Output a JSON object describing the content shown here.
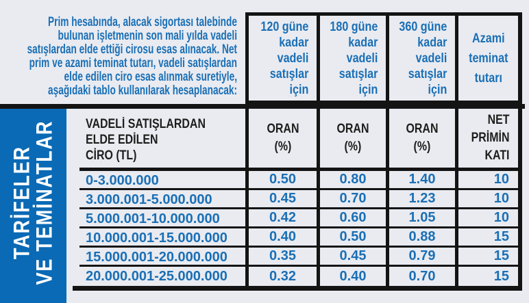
{
  "colors": {
    "background": "#e9ebf1",
    "blue_text": "#1a6fb5",
    "sidebar_blue": "#0a6ab5",
    "border_black": "#141414",
    "dark_text": "#1d1d1b",
    "white": "#ffffff"
  },
  "intro": {
    "lines": [
      "Prim hesabında, alacak sigortası talebinde",
      "bulunan işletmenin son mali yılda vadeli",
      "satışlardan elde ettiği cirosu esas alınacak. Net",
      "prim ve azami teminat tutarı, vadeli satışlardan",
      "elde edilen ciro esas alınmak suretiyle,",
      "aşağıdaki tablo kullanılarak hesaplanacak:"
    ]
  },
  "sidebar": {
    "label_lines": [
      "TARİFELER",
      "VE TEMİNATLAR"
    ]
  },
  "top_headers": [
    {
      "lines": [
        "120 güne",
        "kadar",
        "vadeli",
        "satışlar",
        "için"
      ]
    },
    {
      "lines": [
        "180 güne",
        "kadar",
        "vadeli",
        "satışlar",
        "için"
      ]
    },
    {
      "lines": [
        "360 güne",
        "kadar",
        "vadeli",
        "satışlar",
        "için"
      ]
    },
    {
      "lines": [
        "Azami",
        "teminat",
        "tutarı"
      ]
    }
  ],
  "table": {
    "column_headers": [
      {
        "lines": [
          "VADELİ SATIŞLARDAN",
          "ELDE EDİLEN",
          "CİRO (TL)"
        ]
      },
      {
        "lines": [
          "ORAN",
          "(%)"
        ]
      },
      {
        "lines": [
          "ORAN",
          "(%)"
        ]
      },
      {
        "lines": [
          "ORAN",
          "(%)"
        ]
      },
      {
        "lines": [
          "NET",
          "PRİMİN",
          "KATI"
        ]
      }
    ],
    "rows": [
      [
        "0-3.000.000",
        "0.50",
        "0.80",
        "1.40",
        "10"
      ],
      [
        "3.000.001-5.000.000",
        "0.45",
        "0.70",
        "1.23",
        "10"
      ],
      [
        "5.000.001-10.000.000",
        "0.42",
        "0.60",
        "1.05",
        "10"
      ],
      [
        "10.000.001-15.000.000",
        "0.40",
        "0.50",
        "0.88",
        "15"
      ],
      [
        "15.000.001-20.000.000",
        "0.35",
        "0.45",
        "0.79",
        "15"
      ],
      [
        "20.000.001-25.000.000",
        "0.32",
        "0.40",
        "0.70",
        "15"
      ]
    ]
  }
}
